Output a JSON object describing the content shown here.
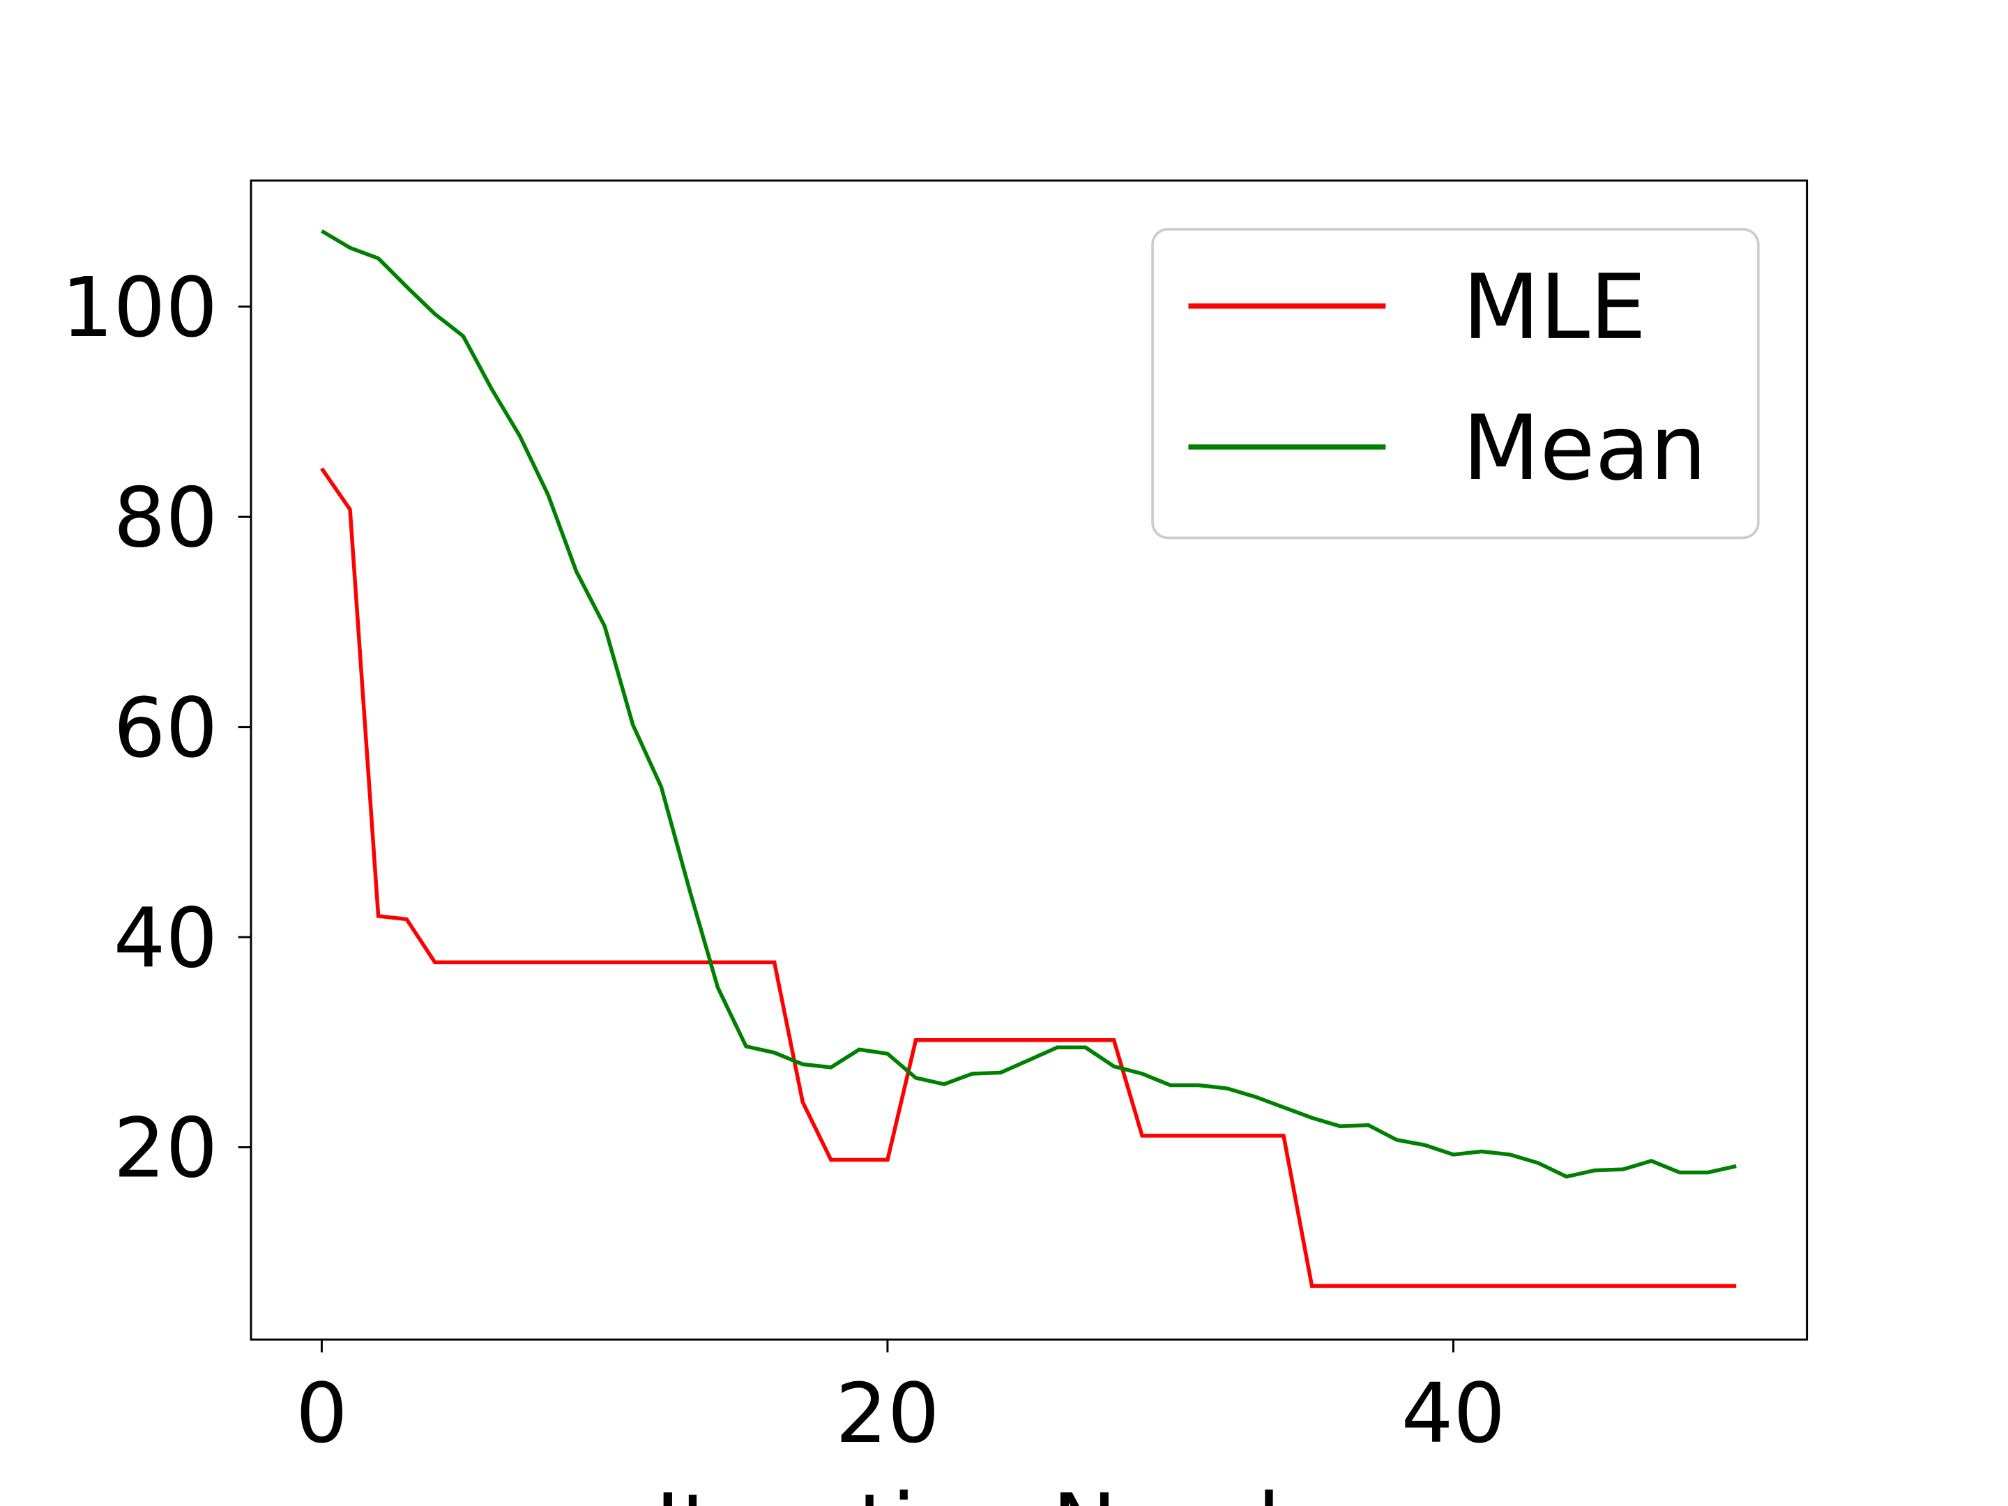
{
  "chart_data": {
    "type": "line",
    "x": [
      0,
      1,
      2,
      3,
      4,
      5,
      6,
      7,
      8,
      9,
      10,
      11,
      12,
      13,
      14,
      15,
      16,
      17,
      18,
      19,
      20,
      21,
      22,
      23,
      24,
      25,
      26,
      27,
      28,
      29,
      30,
      31,
      32,
      33,
      34,
      35,
      36,
      37,
      38,
      39,
      40,
      41,
      42,
      43,
      44,
      45,
      46,
      47,
      48,
      49,
      50
    ],
    "series": [
      {
        "name": "MLE",
        "color": "#ff0000",
        "values": [
          84.6,
          80.7,
          42.0,
          41.7,
          37.6,
          37.6,
          37.6,
          37.6,
          37.6,
          37.6,
          37.6,
          37.6,
          37.6,
          37.6,
          37.6,
          37.6,
          37.6,
          24.3,
          18.8,
          18.8,
          18.8,
          30.2,
          30.2,
          30.2,
          30.2,
          30.2,
          30.2,
          30.2,
          30.2,
          21.1,
          21.1,
          21.1,
          21.1,
          21.1,
          21.1,
          6.8,
          6.8,
          6.8,
          6.8,
          6.8,
          6.8,
          6.8,
          6.8,
          6.8,
          6.8,
          6.8,
          6.8,
          6.8,
          6.8,
          6.8,
          6.8
        ]
      },
      {
        "name": "Mean",
        "color": "#008000",
        "values": [
          107.2,
          105.6,
          104.6,
          101.9,
          99.3,
          97.2,
          92.2,
          87.7,
          82.1,
          74.8,
          69.6,
          60.2,
          54.3,
          44.5,
          35.2,
          29.6,
          29.0,
          27.9,
          27.6,
          29.3,
          28.9,
          26.6,
          26.0,
          27.0,
          27.1,
          28.3,
          29.5,
          29.5,
          27.7,
          27.0,
          25.9,
          25.9,
          25.6,
          24.8,
          23.8,
          22.8,
          22.0,
          22.1,
          20.7,
          20.2,
          19.3,
          19.6,
          19.3,
          18.5,
          17.2,
          17.8,
          17.9,
          18.7,
          17.6,
          17.6,
          18.2
        ]
      }
    ],
    "x_label": "Iteration Number",
    "xlim": [
      -2.5,
      52.5
    ],
    "xticks": [
      0,
      20,
      40
    ],
    "ylim": [
      1.7,
      112
    ],
    "yticks": [
      20,
      40,
      60,
      80,
      100
    ],
    "legend": "upper right"
  }
}
